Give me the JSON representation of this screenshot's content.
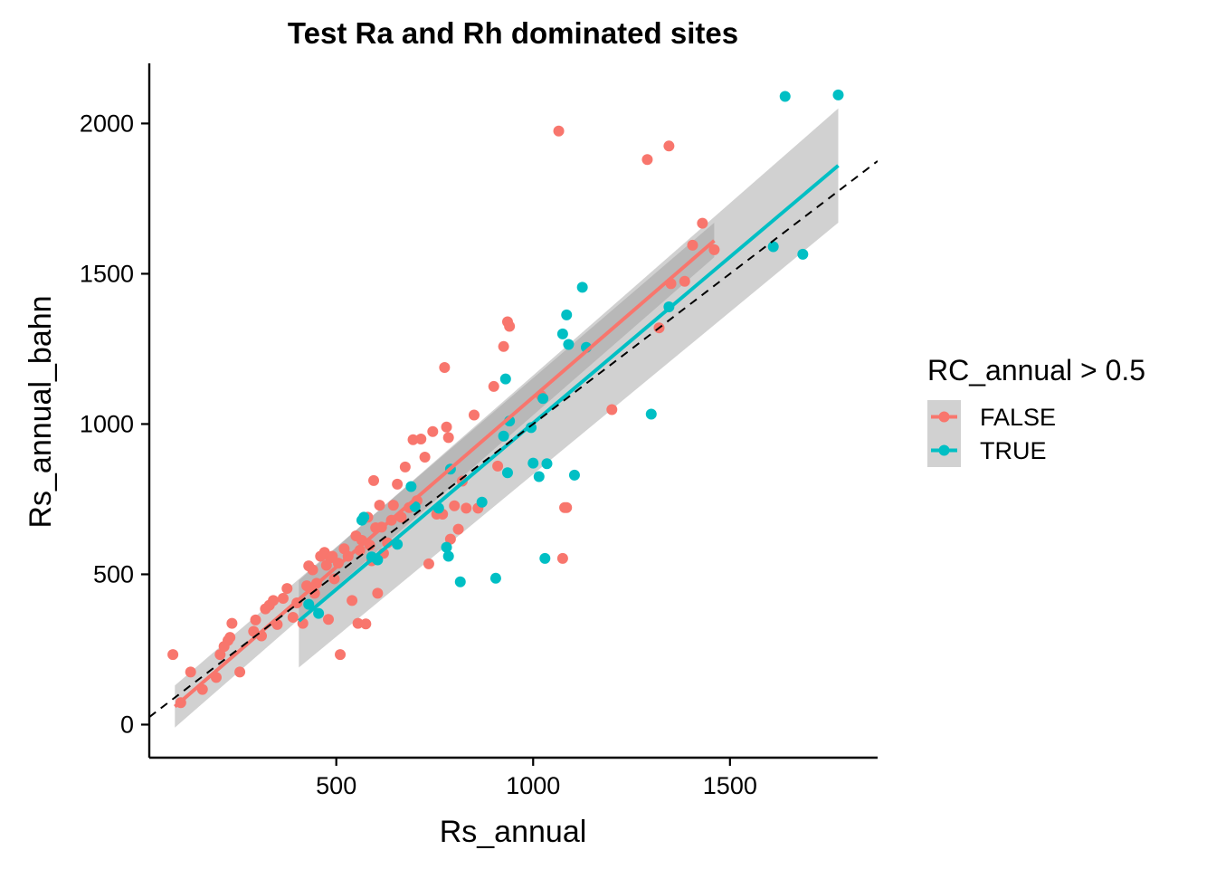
{
  "chart_data": {
    "type": "scatter",
    "title": "Test Ra and Rh dominated sites",
    "xlabel": "Rs_annual",
    "ylabel": "Rs_annual_bahn",
    "xlim": [
      25,
      1875
    ],
    "ylim": [
      -110,
      2200
    ],
    "x_ticks": [
      "500",
      "1000",
      "1500"
    ],
    "x_tick_values": [
      500,
      1000,
      1500
    ],
    "y_ticks": [
      "0",
      "500",
      "1000",
      "1500",
      "2000"
    ],
    "y_tick_values": [
      0,
      500,
      1000,
      1500,
      2000
    ],
    "grid": false,
    "reference_line": {
      "style": "dashed",
      "color": "#000000",
      "intercept": 0,
      "slope": 1
    },
    "legend": {
      "title": "RC_annual > 0.5",
      "position": "right",
      "entries": [
        "FALSE",
        "TRUE"
      ]
    },
    "series": [
      {
        "name": "FALSE",
        "color": "#F8766D",
        "fit": {
          "x": [
            90,
            1460
          ],
          "y": [
            60,
            1610
          ],
          "band_lower": [
            -10,
            1555
          ],
          "band_upper": [
            130,
            1670
          ]
        },
        "points": [
          [
            85,
            233
          ],
          [
            105,
            73
          ],
          [
            130,
            175
          ],
          [
            160,
            117
          ],
          [
            195,
            157
          ],
          [
            205,
            233
          ],
          [
            215,
            260
          ],
          [
            225,
            280
          ],
          [
            230,
            290
          ],
          [
            235,
            337
          ],
          [
            255,
            175
          ],
          [
            290,
            310
          ],
          [
            295,
            348
          ],
          [
            310,
            295
          ],
          [
            320,
            385
          ],
          [
            330,
            397
          ],
          [
            340,
            413
          ],
          [
            350,
            333
          ],
          [
            365,
            420
          ],
          [
            375,
            453
          ],
          [
            390,
            357
          ],
          [
            400,
            405
          ],
          [
            415,
            337
          ],
          [
            425,
            462
          ],
          [
            430,
            528
          ],
          [
            440,
            515
          ],
          [
            445,
            437
          ],
          [
            450,
            470
          ],
          [
            460,
            560
          ],
          [
            470,
            573
          ],
          [
            475,
            530
          ],
          [
            480,
            350
          ],
          [
            485,
            555
          ],
          [
            490,
            560
          ],
          [
            495,
            485
          ],
          [
            505,
            537
          ],
          [
            510,
            233
          ],
          [
            520,
            585
          ],
          [
            530,
            560
          ],
          [
            540,
            413
          ],
          [
            550,
            628
          ],
          [
            555,
            337
          ],
          [
            560,
            580
          ],
          [
            565,
            613
          ],
          [
            570,
            688
          ],
          [
            575,
            335
          ],
          [
            580,
            690
          ],
          [
            585,
            597
          ],
          [
            590,
            545
          ],
          [
            595,
            812
          ],
          [
            600,
            655
          ],
          [
            605,
            437
          ],
          [
            610,
            730
          ],
          [
            615,
            657
          ],
          [
            620,
            570
          ],
          [
            630,
            605
          ],
          [
            640,
            680
          ],
          [
            645,
            730
          ],
          [
            655,
            800
          ],
          [
            665,
            690
          ],
          [
            675,
            857
          ],
          [
            685,
            722
          ],
          [
            695,
            948
          ],
          [
            705,
            745
          ],
          [
            715,
            950
          ],
          [
            725,
            890
          ],
          [
            735,
            535
          ],
          [
            745,
            975
          ],
          [
            755,
            700
          ],
          [
            760,
            710
          ],
          [
            770,
            700
          ],
          [
            775,
            1188
          ],
          [
            780,
            990
          ],
          [
            785,
            955
          ],
          [
            790,
            617
          ],
          [
            800,
            728
          ],
          [
            810,
            650
          ],
          [
            820,
            810
          ],
          [
            830,
            720
          ],
          [
            850,
            1030
          ],
          [
            860,
            720
          ],
          [
            900,
            1125
          ],
          [
            910,
            860
          ],
          [
            925,
            1258
          ],
          [
            935,
            1340
          ],
          [
            940,
            1325
          ],
          [
            1020,
            1095
          ],
          [
            1065,
            1975
          ],
          [
            1075,
            553
          ],
          [
            1080,
            722
          ],
          [
            1085,
            722
          ],
          [
            1200,
            1048
          ],
          [
            1290,
            1880
          ],
          [
            1320,
            1320
          ],
          [
            1345,
            1925
          ],
          [
            1350,
            1467
          ],
          [
            1385,
            1475
          ],
          [
            1405,
            1595
          ],
          [
            1430,
            1668
          ],
          [
            1460,
            1580
          ]
        ]
      },
      {
        "name": "TRUE",
        "color": "#00BFC4",
        "fit": {
          "x": [
            405,
            1775
          ],
          "y": [
            345,
            1860
          ],
          "band_lower": [
            190,
            1670
          ],
          "band_upper": [
            480,
            2050
          ]
        },
        "points": [
          [
            430,
            400
          ],
          [
            455,
            370
          ],
          [
            565,
            680
          ],
          [
            570,
            690
          ],
          [
            590,
            558
          ],
          [
            605,
            548
          ],
          [
            655,
            600
          ],
          [
            690,
            792
          ],
          [
            700,
            725
          ],
          [
            760,
            720
          ],
          [
            780,
            590
          ],
          [
            785,
            560
          ],
          [
            790,
            850
          ],
          [
            815,
            475
          ],
          [
            870,
            740
          ],
          [
            905,
            487
          ],
          [
            925,
            960
          ],
          [
            930,
            1150
          ],
          [
            935,
            838
          ],
          [
            940,
            1010
          ],
          [
            995,
            988
          ],
          [
            1000,
            870
          ],
          [
            1015,
            825
          ],
          [
            1025,
            1085
          ],
          [
            1030,
            553
          ],
          [
            1035,
            868
          ],
          [
            1075,
            1300
          ],
          [
            1085,
            1363
          ],
          [
            1090,
            1265
          ],
          [
            1105,
            830
          ],
          [
            1125,
            1455
          ],
          [
            1135,
            1255
          ],
          [
            1300,
            1033
          ],
          [
            1345,
            1390
          ],
          [
            1610,
            1590
          ],
          [
            1640,
            2090
          ],
          [
            1685,
            1565
          ],
          [
            1775,
            2095
          ]
        ]
      }
    ]
  }
}
